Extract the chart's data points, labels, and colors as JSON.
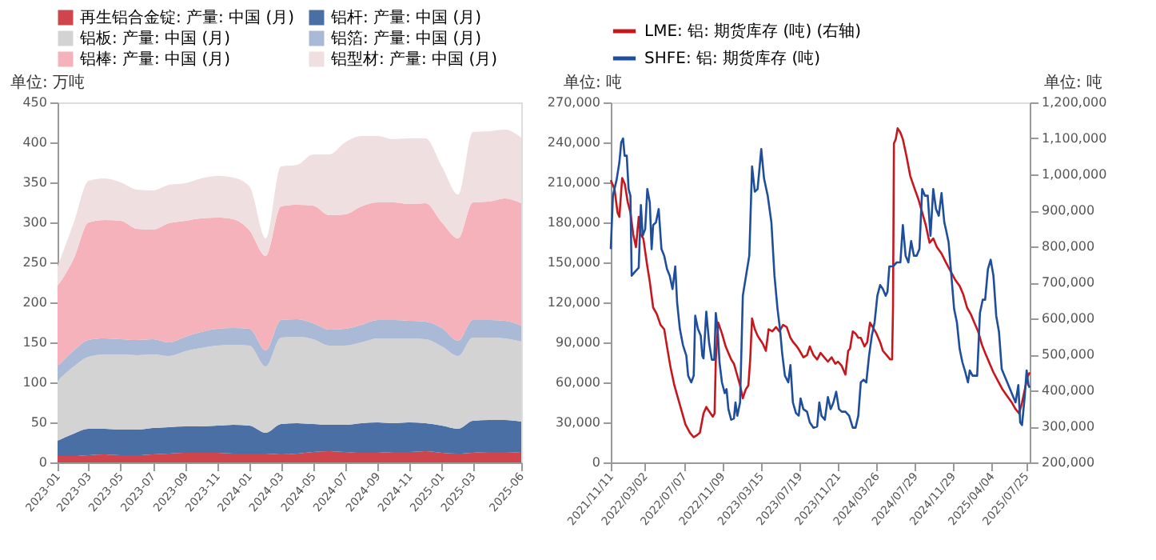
{
  "chart_data": [
    {
      "type": "area",
      "stacked": true,
      "ylabel": "单位: 万吨",
      "legend": "top",
      "grid": false,
      "x": [
        "2023-01",
        "2023-02",
        "2023-03",
        "2023-04",
        "2023-05",
        "2023-06",
        "2023-07",
        "2023-08",
        "2023-09",
        "2023-10",
        "2023-11",
        "2023-12",
        "2024-01",
        "2024-02",
        "2024-03",
        "2024-04",
        "2024-05",
        "2024-06",
        "2024-07",
        "2024-08",
        "2024-09",
        "2024-10",
        "2024-11",
        "2024-12",
        "2025-01",
        "2025-02",
        "2025-03",
        "2025-04",
        "2025-05",
        "2025-06"
      ],
      "xlim": [
        "2023-01",
        "2025-06"
      ],
      "xticks": [
        "2023-01",
        "2023-03",
        "2023-05",
        "2023-07",
        "2023-09",
        "2023-11",
        "2024-01",
        "2024-03",
        "2024-05",
        "2024-07",
        "2024-09",
        "2024-11",
        "2025-01",
        "2025-03",
        "2025-06"
      ],
      "ylim": [
        0,
        450
      ],
      "yticks": [
        0,
        50,
        100,
        150,
        200,
        250,
        300,
        350,
        400,
        450
      ],
      "series": [
        {
          "name": "再生铝合金锭: 产量: 中国 (月)",
          "color": "#d0454c",
          "values": [
            8,
            8,
            9,
            10,
            9,
            9,
            10,
            11,
            12,
            12,
            12,
            11,
            11,
            11,
            10,
            11,
            13,
            14,
            13,
            12,
            12,
            13,
            13,
            14,
            12,
            11,
            12,
            13,
            13,
            12
          ]
        },
        {
          "name": "铝杆: 产量: 中国 (月)",
          "color": "#4a6fa5",
          "values": [
            19,
            28,
            33,
            32,
            32,
            32,
            33,
            33,
            33,
            33,
            34,
            36,
            35,
            26,
            38,
            38,
            35,
            33,
            34,
            37,
            38,
            36,
            37,
            35,
            34,
            31,
            40,
            40,
            40,
            39
          ]
        },
        {
          "name": "铝板: 产量: 中国 (月)",
          "color": "#d3d3d3",
          "values": [
            75,
            84,
            90,
            93,
            94,
            93,
            92,
            89,
            94,
            98,
            100,
            100,
            100,
            83,
            108,
            108,
            106,
            99,
            99,
            101,
            105,
            106,
            105,
            105,
            99,
            91,
            104,
            103,
            102,
            100
          ]
        },
        {
          "name": "铝箔: 产量: 中国 (月)",
          "color": "#a9b9d6",
          "values": [
            18,
            20,
            21,
            20,
            19,
            19,
            19,
            17,
            18,
            20,
            21,
            21,
            21,
            20,
            22,
            22,
            20,
            20,
            21,
            22,
            23,
            23,
            22,
            22,
            23,
            19,
            22,
            22,
            22,
            20
          ]
        },
        {
          "name": "铝棒: 产量: 中国 (月)",
          "color": "#f5b2ba",
          "values": [
            100,
            115,
            147,
            148,
            148,
            139,
            137,
            149,
            145,
            142,
            139,
            136,
            123,
            118,
            142,
            143,
            147,
            143,
            143,
            148,
            147,
            147,
            146,
            148,
            132,
            128,
            147,
            148,
            153,
            153
          ]
        },
        {
          "name": "铝型材: 产量: 中国 (月)",
          "color": "#efdfe0",
          "values": [
            25,
            45,
            52,
            52,
            48,
            49,
            49,
            48,
            47,
            50,
            52,
            52,
            55,
            22,
            50,
            50,
            64,
            76,
            90,
            88,
            83,
            79,
            82,
            81,
            70,
            55,
            88,
            88,
            86,
            82
          ]
        }
      ]
    },
    {
      "type": "line",
      "ylabel": "单位: 吨",
      "y2label": "单位: 吨",
      "legend": "top",
      "grid": false,
      "line_style": "solid",
      "xlim": [
        "2021-11-11",
        "2025-08-06"
      ],
      "xticks": [
        {
          "value": "2021-11-11",
          "label": "2021/11/11"
        },
        {
          "value": "2022-03-02",
          "label": "2022/03/02"
        },
        {
          "value": "2022-07-07",
          "label": "2022/07/07"
        },
        {
          "value": "2022-11-09",
          "label": "2022/11/09"
        },
        {
          "value": "2023-03-15",
          "label": "2023/03/15"
        },
        {
          "value": "2023-07-19",
          "label": "2023/07/19"
        },
        {
          "value": "2023-11-21",
          "label": "2023/11/21"
        },
        {
          "value": "2024-03-26",
          "label": "2024/03/26"
        },
        {
          "value": "2024-07-29",
          "label": "2024/07/29"
        },
        {
          "value": "2024-11-29",
          "label": "2024/11/29"
        },
        {
          "value": "2025-04-04",
          "label": "2025/04/04"
        },
        {
          "value": "2025-07-25",
          "label": "2025/07/25"
        }
      ],
      "ylim": [
        0,
        270000
      ],
      "yticks": [
        0,
        {
          "value": 30000,
          "label": "30,000"
        },
        {
          "value": 60000,
          "label": "60,000"
        },
        {
          "value": 90000,
          "label": "90,000"
        },
        {
          "value": 120000,
          "label": "120,000"
        },
        {
          "value": 150000,
          "label": "150,000"
        },
        {
          "value": 180000,
          "label": "180,000"
        },
        {
          "value": 210000,
          "label": "210,000"
        },
        {
          "value": 240000,
          "label": "240,000"
        },
        {
          "value": 270000,
          "label": "270,000"
        }
      ],
      "y2lim": [
        200000,
        1200000
      ],
      "y2ticks": [
        {
          "value": 200000,
          "label": "200,000"
        },
        {
          "value": 300000,
          "label": "300,000"
        },
        {
          "value": 400000,
          "label": "400,000"
        },
        {
          "value": 500000,
          "label": "500,000"
        },
        {
          "value": 600000,
          "label": "600,000"
        },
        {
          "value": 700000,
          "label": "700,000"
        },
        {
          "value": 800000,
          "label": "800,000"
        },
        {
          "value": 900000,
          "label": "900,000"
        },
        {
          "value": 1000000,
          "label": "1,000,000"
        },
        {
          "value": 1100000,
          "label": "1,100,000"
        },
        {
          "value": 1200000,
          "label": "1,200,000"
        }
      ],
      "series": [
        {
          "name": "LME: 铝: 期货库存 (吨) (右轴)",
          "color": "#c8161d",
          "axis": "y2",
          "x": [
            "2021-11-11",
            "2021-11-23",
            "2021-12-03",
            "2021-12-09",
            "2021-12-18",
            "2021-12-27",
            "2022-01-05",
            "2022-01-14",
            "2022-01-23",
            "2022-02-01",
            "2022-02-10",
            "2022-02-16",
            "2022-02-25",
            "2022-03-09",
            "2022-03-18",
            "2022-03-29",
            "2022-04-10",
            "2022-04-22",
            "2022-05-04",
            "2022-05-13",
            "2022-05-25",
            "2022-06-06",
            "2022-06-18",
            "2022-06-30",
            "2022-07-12",
            "2022-07-27",
            "2022-08-08",
            "2022-08-19",
            "2022-08-28",
            "2022-09-09",
            "2022-09-18",
            "2022-09-27",
            "2022-10-09",
            "2022-10-15",
            "2022-10-19",
            "2022-10-27",
            "2022-11-08",
            "2022-11-20",
            "2022-11-29",
            "2022-12-08",
            "2022-12-17",
            "2022-12-25",
            "2023-01-06",
            "2023-01-15",
            "2023-01-24",
            "2023-02-02",
            "2023-02-08",
            "2023-02-14",
            "2023-02-23",
            "2023-03-04",
            "2023-03-13",
            "2023-03-22",
            "2023-03-31",
            "2023-04-09",
            "2023-04-21",
            "2023-05-03",
            "2023-05-14",
            "2023-05-26",
            "2023-06-07",
            "2023-06-19",
            "2023-06-28",
            "2023-07-10",
            "2023-07-19",
            "2023-07-31",
            "2023-08-12",
            "2023-08-21",
            "2023-09-02",
            "2023-09-14",
            "2023-09-25",
            "2023-10-07",
            "2023-10-19",
            "2023-10-31",
            "2023-11-12",
            "2023-11-21",
            "2023-12-03",
            "2023-12-15",
            "2023-12-24",
            "2023-12-30",
            "2024-01-08",
            "2024-01-17",
            "2024-01-26",
            "2024-02-03",
            "2024-02-15",
            "2024-02-24",
            "2024-03-04",
            "2024-03-13",
            "2024-03-25",
            "2024-04-06",
            "2024-04-15",
            "2024-04-27",
            "2024-05-09",
            "2024-05-15",
            "2024-05-18",
            "2024-05-21",
            "2024-05-27",
            "2024-06-02",
            "2024-06-11",
            "2024-06-19",
            "2024-07-01",
            "2024-07-13",
            "2024-07-25",
            "2024-08-09",
            "2024-08-21",
            "2024-09-02",
            "2024-09-14",
            "2024-09-26",
            "2024-10-08",
            "2024-10-23",
            "2024-11-06",
            "2024-11-21",
            "2024-12-06",
            "2024-12-21",
            "2025-01-02",
            "2025-01-14",
            "2025-01-26",
            "2025-02-07",
            "2025-02-19",
            "2025-03-03",
            "2025-03-14",
            "2025-03-26",
            "2025-04-10",
            "2025-04-25",
            "2025-05-10",
            "2025-05-25",
            "2025-06-09",
            "2025-06-21",
            "2025-07-03",
            "2025-07-12",
            "2025-07-21",
            "2025-07-30",
            "2025-08-06"
          ],
          "values": [
            984000,
            960000,
            894000,
            882000,
            990000,
            972000,
            924000,
            894000,
            834000,
            798000,
            882000,
            834000,
            822000,
            750000,
            702000,
            630000,
            612000,
            582000,
            570000,
            522000,
            462000,
            414000,
            378000,
            342000,
            306000,
            282000,
            270000,
            276000,
            282000,
            336000,
            354000,
            342000,
            327000,
            336000,
            486000,
            588000,
            558000,
            522000,
            504000,
            486000,
            474000,
            450000,
            414000,
            378000,
            402000,
            414000,
            486000,
            600000,
            570000,
            552000,
            540000,
            528000,
            510000,
            570000,
            564000,
            576000,
            564000,
            582000,
            576000,
            546000,
            534000,
            522000,
            510000,
            492000,
            498000,
            522000,
            498000,
            486000,
            504000,
            492000,
            480000,
            492000,
            474000,
            480000,
            468000,
            444000,
            510000,
            516000,
            564000,
            558000,
            546000,
            546000,
            522000,
            534000,
            588000,
            576000,
            558000,
            534000,
            510000,
            498000,
            486000,
            486000,
            630000,
            1086000,
            1098000,
            1128000,
            1116000,
            1098000,
            1050000,
            996000,
            966000,
            930000,
            894000,
            858000,
            810000,
            822000,
            798000,
            780000,
            756000,
            732000,
            708000,
            690000,
            666000,
            630000,
            612000,
            588000,
            564000,
            528000,
            504000,
            480000,
            450000,
            426000,
            402000,
            384000,
            366000,
            348000,
            336000,
            366000,
            402000,
            438000,
            450000
          ]
        },
        {
          "name": "SHFE: 铝: 期货库存 (吨)",
          "color": "#1f4e9c",
          "axis": "y",
          "x": [
            "2021-11-11",
            "2021-11-18",
            "2021-11-30",
            "2021-12-09",
            "2021-12-15",
            "2021-12-21",
            "2021-12-26",
            "2022-01-02",
            "2022-01-08",
            "2022-01-14",
            "2022-01-18",
            "2022-01-29",
            "2022-02-10",
            "2022-02-17",
            "2022-02-23",
            "2022-03-03",
            "2022-03-10",
            "2022-03-18",
            "2022-03-24",
            "2022-03-29",
            "2022-04-07",
            "2022-04-16",
            "2022-04-25",
            "2022-05-04",
            "2022-05-13",
            "2022-05-22",
            "2022-05-31",
            "2022-06-09",
            "2022-06-15",
            "2022-06-24",
            "2022-07-04",
            "2022-07-15",
            "2022-07-21",
            "2022-07-31",
            "2022-08-08",
            "2022-08-13",
            "2022-08-22",
            "2022-08-31",
            "2022-09-05",
            "2022-09-09",
            "2022-09-18",
            "2022-09-27",
            "2022-10-06",
            "2022-10-14",
            "2022-10-19",
            "2022-10-25",
            "2022-10-31",
            "2022-11-08",
            "2022-11-17",
            "2022-11-23",
            "2022-11-29",
            "2022-12-08",
            "2022-12-17",
            "2022-12-22",
            "2022-12-28",
            "2023-01-06",
            "2023-01-15",
            "2023-01-24",
            "2023-02-05",
            "2023-02-14",
            "2023-02-23",
            "2023-03-04",
            "2023-03-16",
            "2023-03-25",
            "2023-04-06",
            "2023-04-18",
            "2023-04-28",
            "2023-05-08",
            "2023-05-16",
            "2023-05-23",
            "2023-06-01",
            "2023-06-12",
            "2023-06-19",
            "2023-06-27",
            "2023-07-07",
            "2023-07-16",
            "2023-07-22",
            "2023-07-31",
            "2023-08-12",
            "2023-08-21",
            "2023-09-02",
            "2023-09-14",
            "2023-09-21",
            "2023-09-28",
            "2023-10-09",
            "2023-10-19",
            "2023-10-28",
            "2023-11-06",
            "2023-11-15",
            "2023-11-24",
            "2023-12-03",
            "2023-12-15",
            "2023-12-27",
            "2024-01-08",
            "2024-01-17",
            "2024-01-26",
            "2024-02-03",
            "2024-02-12",
            "2024-02-21",
            "2024-03-01",
            "2024-03-10",
            "2024-03-19",
            "2024-03-28",
            "2024-04-06",
            "2024-04-15",
            "2024-04-24",
            "2024-04-30",
            "2024-05-06",
            "2024-05-18",
            "2024-05-30",
            "2024-06-11",
            "2024-06-19",
            "2024-06-28",
            "2024-07-07",
            "2024-07-16",
            "2024-07-25",
            "2024-08-03",
            "2024-08-12",
            "2024-08-21",
            "2024-08-30",
            "2024-09-08",
            "2024-09-17",
            "2024-09-26",
            "2024-10-05",
            "2024-10-14",
            "2024-10-23",
            "2024-11-01",
            "2024-11-06",
            "2024-11-15",
            "2024-11-24",
            "2024-12-03",
            "2024-12-12",
            "2024-12-21",
            "2024-12-30",
            "2025-01-08",
            "2025-01-17",
            "2025-01-23",
            "2025-02-01",
            "2025-02-16",
            "2025-02-25",
            "2025-03-06",
            "2025-03-14",
            "2025-03-23",
            "2025-04-01",
            "2025-04-10",
            "2025-04-19",
            "2025-04-28",
            "2025-05-07",
            "2025-05-16",
            "2025-05-25",
            "2025-06-03",
            "2025-06-12",
            "2025-06-21",
            "2025-06-30",
            "2025-07-06",
            "2025-07-12",
            "2025-07-21",
            "2025-07-27",
            "2025-08-02",
            "2025-08-06"
          ],
          "values": [
            160000,
            200000,
            212000,
            225000,
            240000,
            243000,
            230000,
            230000,
            205000,
            200000,
            140000,
            143000,
            146000,
            193000,
            170000,
            175000,
            205000,
            195000,
            160000,
            178000,
            180000,
            190000,
            160000,
            155000,
            145000,
            140000,
            130000,
            147000,
            120000,
            100000,
            88000,
            80000,
            65000,
            60000,
            65000,
            110000,
            100000,
            95000,
            80000,
            78000,
            113000,
            90000,
            77000,
            77000,
            112000,
            100000,
            75000,
            60000,
            52000,
            55000,
            40000,
            32000,
            33000,
            45000,
            35000,
            45000,
            125000,
            138000,
            155000,
            222000,
            203000,
            205000,
            235000,
            213000,
            200000,
            180000,
            140000,
            115000,
            100000,
            82000,
            65000,
            60000,
            73000,
            45000,
            37000,
            35000,
            48000,
            40000,
            38000,
            30000,
            26000,
            27000,
            45000,
            35000,
            32000,
            49000,
            40000,
            45000,
            53000,
            40000,
            38000,
            38000,
            35000,
            26000,
            26000,
            35000,
            60000,
            62000,
            60000,
            80000,
            95000,
            105000,
            125000,
            133000,
            130000,
            125000,
            128000,
            147000,
            147000,
            150000,
            150000,
            178000,
            155000,
            150000,
            166000,
            155000,
            155000,
            160000,
            205000,
            200000,
            200000,
            170000,
            205000,
            190000,
            185000,
            202000,
            180000,
            175000,
            165000,
            140000,
            115000,
            105000,
            85000,
            75000,
            68000,
            60000,
            69000,
            65000,
            65000,
            112000,
            122000,
            122000,
            145000,
            152000,
            140000,
            110000,
            98000,
            70000,
            65000,
            60000,
            55000,
            50000,
            45000,
            58000,
            30000,
            28000,
            50000,
            69000,
            58000,
            56000
          ]
        }
      ]
    }
  ]
}
